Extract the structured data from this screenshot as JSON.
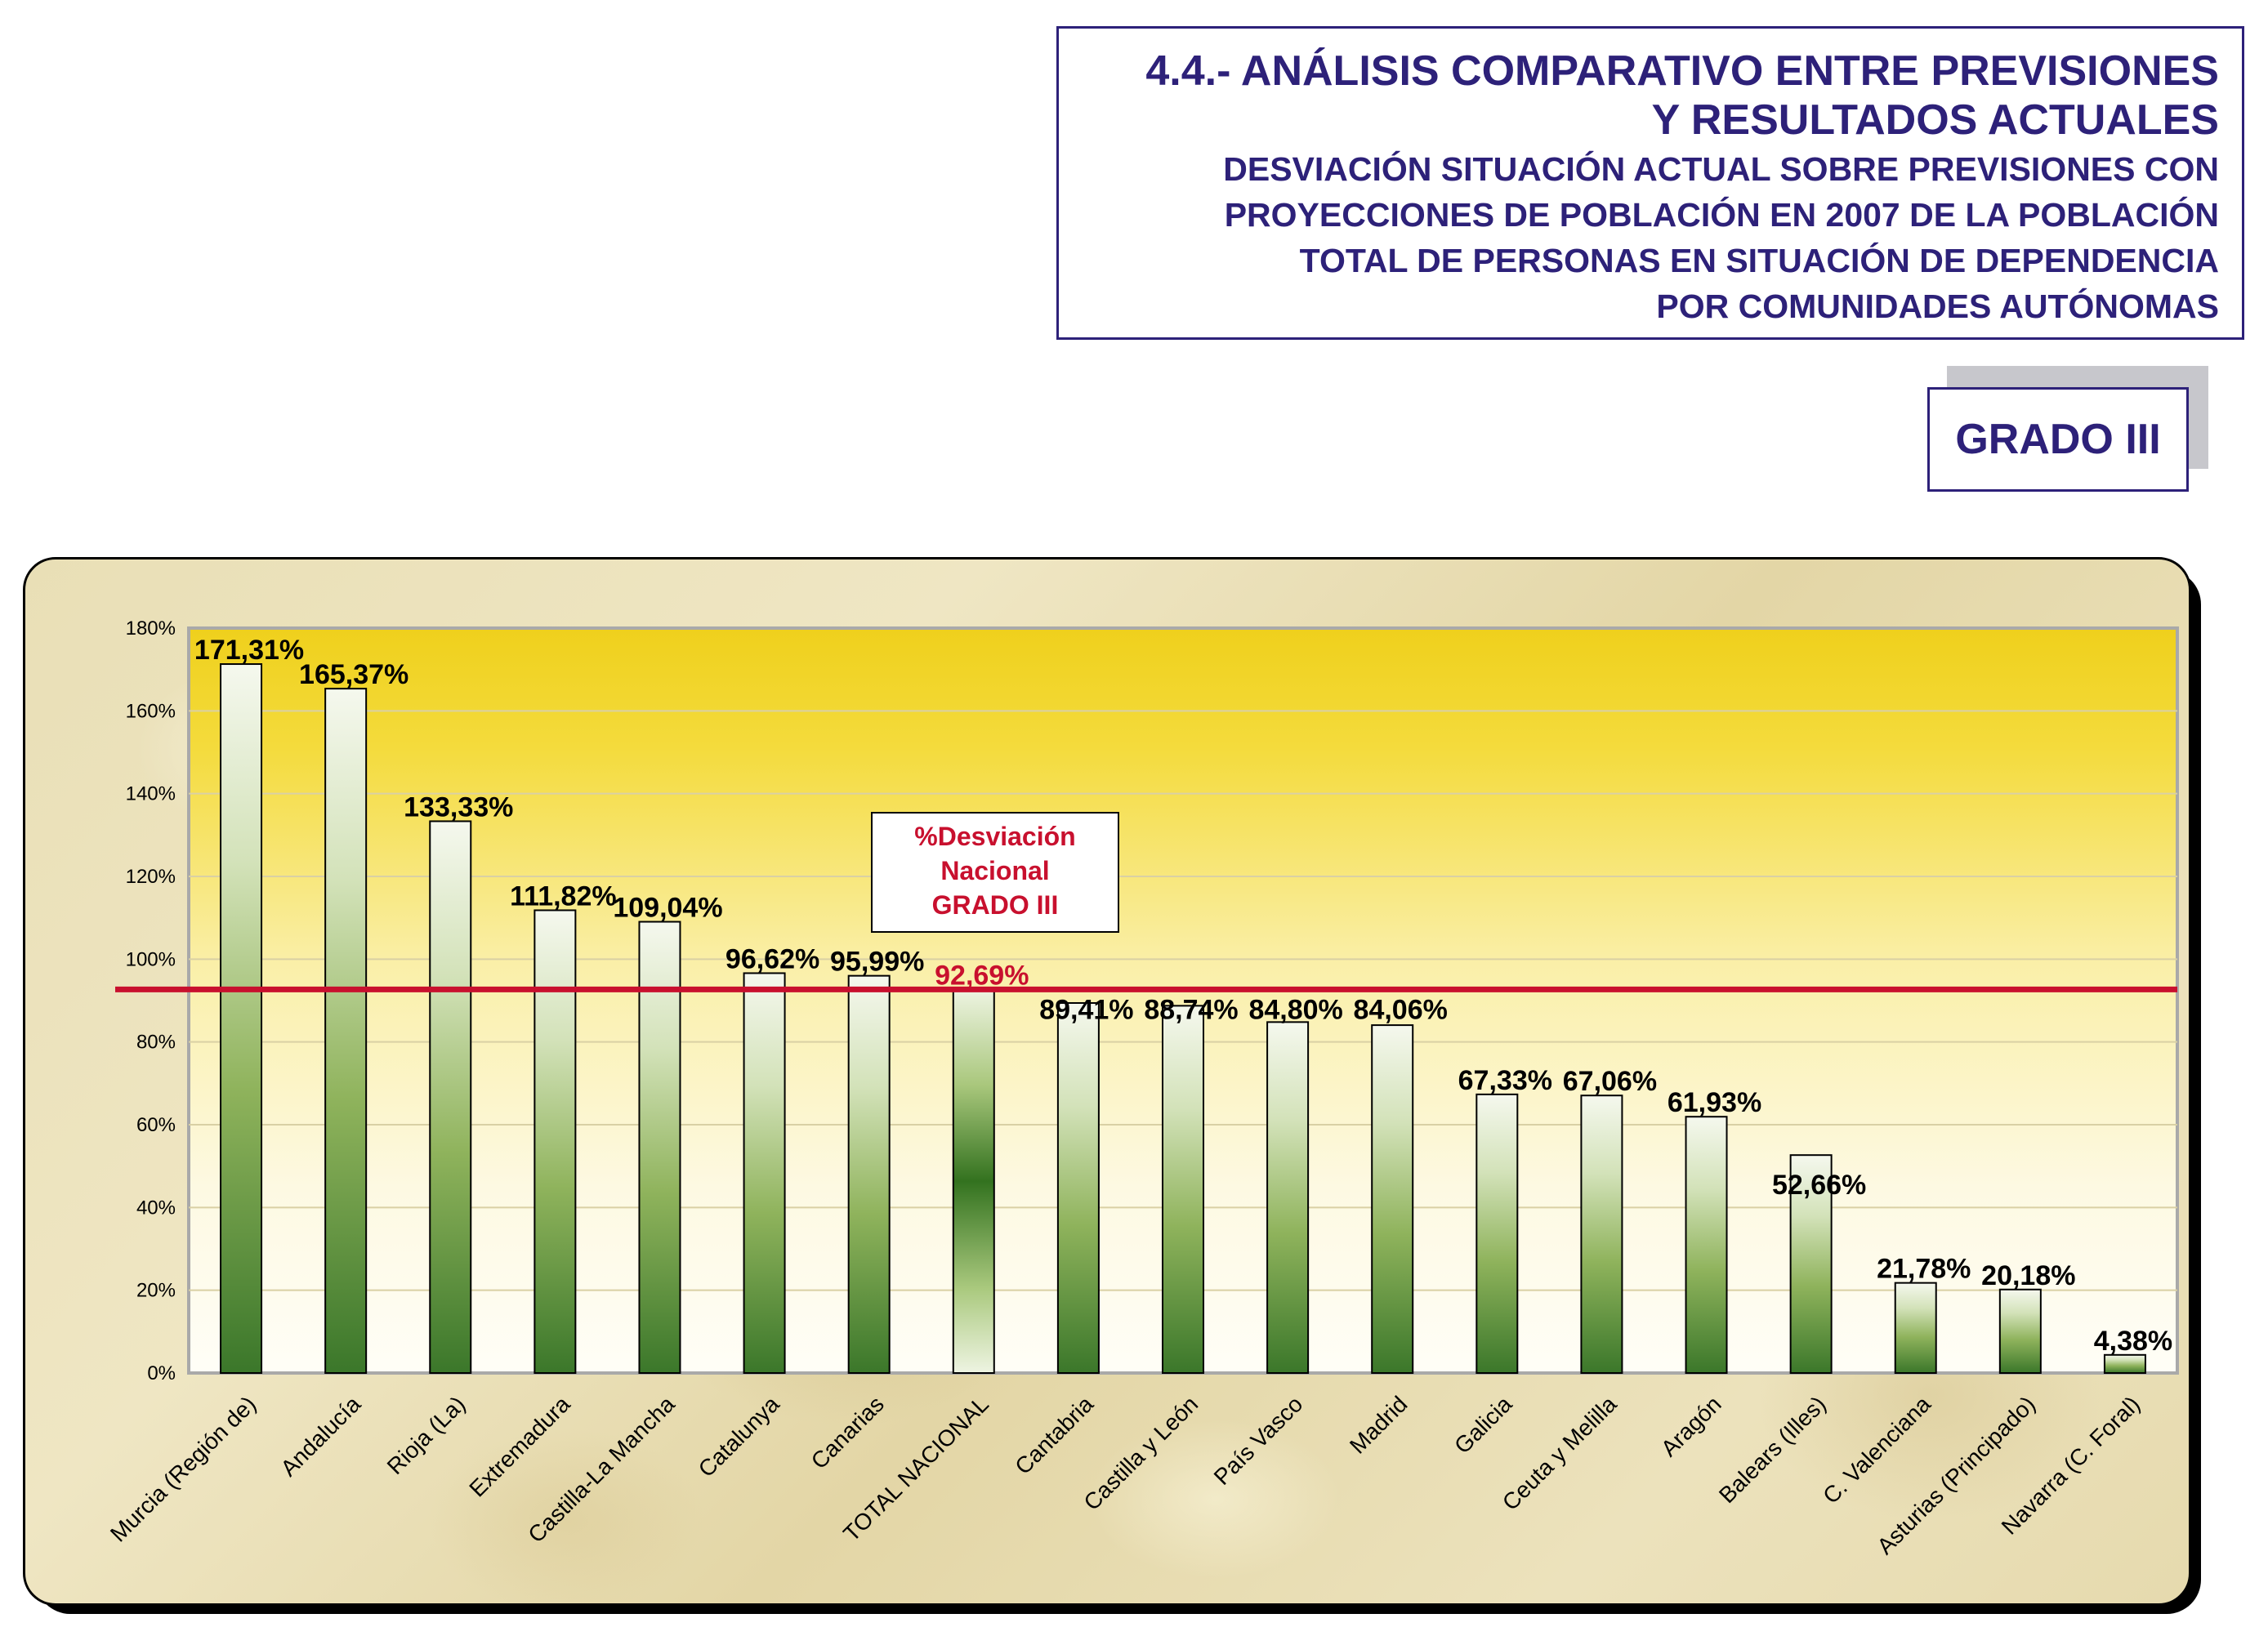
{
  "header": {
    "title_line1": "4.4.- ANÁLISIS COMPARATIVO ENTRE PREVISIONES",
    "title_line2": "Y RESULTADOS ACTUALES",
    "subtitle_lines": [
      "DESVIACIÓN SITUACIÓN ACTUAL SOBRE PREVISIONES CON",
      "PROYECCIONES DE POBLACIÓN EN 2007 DE LA POBLACIÓN",
      "TOTAL DE PERSONAS EN SITUACIÓN DE DEPENDENCIA",
      "POR COMUNIDADES AUTÓNOMAS"
    ],
    "grado_label": "GRADO III"
  },
  "colors": {
    "title": "#2d2179",
    "reference_line": "#c8102e",
    "bar_dark": "#3d7a2b",
    "bar_light": "#f4f7ec",
    "plot_top": "#f0d21e",
    "plot_bottom": "#fffef6"
  },
  "chart_data": {
    "type": "bar",
    "categories": [
      "Murcia (Región de)",
      "Andalucía",
      "Rioja (La)",
      "Extremadura",
      "Castilla-La Mancha",
      "Catalunya",
      "Canarias",
      "TOTAL NACIONAL",
      "Cantabria",
      "Castilla y León",
      "País Vasco",
      "Madrid",
      "Galicia",
      "Ceuta y Melilla",
      "Aragón",
      "Balears (Illes)",
      "C. Valenciana",
      "Asturias (Principado)",
      "Navarra  (C. Foral)"
    ],
    "values": [
      171.31,
      165.37,
      133.33,
      111.82,
      109.04,
      96.62,
      95.99,
      92.69,
      89.41,
      88.74,
      84.8,
      84.06,
      67.33,
      67.06,
      61.93,
      52.66,
      21.78,
      20.18,
      4.38
    ],
    "value_labels": [
      "171,31%",
      "165,37%",
      "133,33%",
      "111,82%",
      "109,04%",
      "96,62%",
      "95,99%",
      "92,69%",
      "89,41%",
      "88,74%",
      "84,80%",
      "84,06%",
      "67,33%",
      "67,06%",
      "61,93%",
      "52,66%",
      "21,78%",
      "20,18%",
      "4,38%"
    ],
    "highlight_category": "TOTAL NACIONAL",
    "y_ticks": [
      "0%",
      "20%",
      "40%",
      "60%",
      "80%",
      "100%",
      "120%",
      "140%",
      "160%",
      "180%"
    ],
    "ylim": [
      0,
      180
    ],
    "grid": true,
    "reference_line": {
      "value": 92.69,
      "label_lines": [
        "%Desviación",
        "Nacional",
        "GRADO III"
      ]
    }
  }
}
